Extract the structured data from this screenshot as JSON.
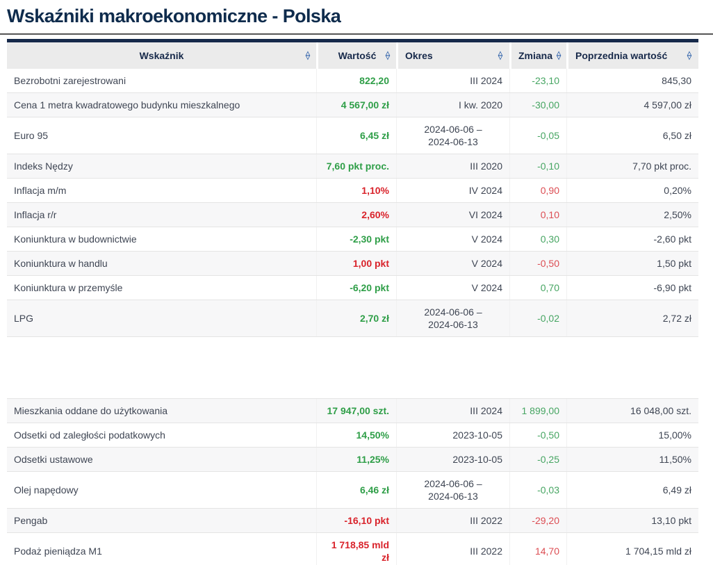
{
  "page": {
    "title": "Wskaźniki makroekonomiczne - Polska"
  },
  "icons": {
    "sort_up": "△",
    "sort_down": "▽"
  },
  "colors": {
    "title": "#0e2b4c",
    "divider": "#555555",
    "header_bg": "#ebebeb",
    "header_text": "#17294a",
    "header_border": "#16294a",
    "sort_icon": "#2c5fa9",
    "body_text": "#3e4553",
    "row_border": "#e4e4e4",
    "row_shade": "#f7f7f8",
    "positive_strong": "#2e9e47",
    "positive_soft": "#46a562",
    "negative_strong": "#d9232b",
    "negative_soft": "#dc4d53"
  },
  "table": {
    "columns": [
      {
        "label": "Wskaźnik"
      },
      {
        "label": "Wartość"
      },
      {
        "label": "Okres"
      },
      {
        "label": "Zmiana"
      },
      {
        "label": "Poprzednia wartość"
      }
    ],
    "sections": [
      {
        "rows": [
          {
            "name": "Bezrobotni zarejestrowani",
            "value": "822,20",
            "trend": "pos",
            "okres": "III 2024",
            "change": "-23,10",
            "change_trend": "pos",
            "previous": "845,30"
          },
          {
            "name": "Cena 1 metra kwadratowego budynku mieszkalnego",
            "value": "4 567,00 zł",
            "trend": "pos",
            "okres": "I kw. 2020",
            "change": "-30,00",
            "change_trend": "pos",
            "previous": "4 597,00 zł"
          },
          {
            "name": "Euro 95",
            "value": "6,45 zł",
            "trend": "pos",
            "okres": "2024-06-06 –\n2024-06-13",
            "change": "-0,05",
            "change_trend": "pos",
            "previous": "6,50 zł"
          },
          {
            "name": "Indeks Nędzy",
            "value": "7,60 pkt proc.",
            "trend": "pos",
            "okres": "III 2020",
            "change": "-0,10",
            "change_trend": "pos",
            "previous": "7,70 pkt proc."
          },
          {
            "name": "Inflacja m/m",
            "value": "1,10%",
            "trend": "neg",
            "okres": "IV 2024",
            "change": "0,90",
            "change_trend": "neg",
            "previous": "0,20%"
          },
          {
            "name": "Inflacja r/r",
            "value": "2,60%",
            "trend": "neg",
            "okres": "VI 2024",
            "change": "0,10",
            "change_trend": "neg",
            "previous": "2,50%"
          },
          {
            "name": "Koniunktura w budownictwie",
            "value": "-2,30 pkt",
            "trend": "pos",
            "okres": "V 2024",
            "change": "0,30",
            "change_trend": "pos",
            "previous": "-2,60 pkt"
          },
          {
            "name": "Koniunktura w handlu",
            "value": "1,00 pkt",
            "trend": "neg",
            "okres": "V 2024",
            "change": "-0,50",
            "change_trend": "neg",
            "previous": "1,50 pkt"
          },
          {
            "name": "Koniunktura w przemyśle",
            "value": "-6,20 pkt",
            "trend": "pos",
            "okres": "V 2024",
            "change": "0,70",
            "change_trend": "pos",
            "previous": "-6,90 pkt"
          },
          {
            "name": "LPG",
            "value": "2,70 zł",
            "trend": "pos",
            "okres": "2024-06-06 –\n2024-06-13",
            "change": "-0,02",
            "change_trend": "pos",
            "previous": "2,72 zł"
          }
        ]
      },
      {
        "rows": [
          {
            "name": "Mieszkania oddane do użytkowania",
            "value": "17 947,00 szt.",
            "trend": "pos",
            "okres": "III 2024",
            "change": "1 899,00",
            "change_trend": "pos",
            "previous": "16 048,00 szt."
          },
          {
            "name": "Odsetki od zaległości podatkowych",
            "value": "14,50%",
            "trend": "pos",
            "okres": "2023-10-05",
            "change": "-0,50",
            "change_trend": "pos",
            "previous": "15,00%"
          },
          {
            "name": "Odsetki ustawowe",
            "value": "11,25%",
            "trend": "pos",
            "okres": "2023-10-05",
            "change": "-0,25",
            "change_trend": "pos",
            "previous": "11,50%"
          },
          {
            "name": "Olej napędowy",
            "value": "6,46 zł",
            "trend": "pos",
            "okres": "2024-06-06 –\n2024-06-13",
            "change": "-0,03",
            "change_trend": "pos",
            "previous": "6,49 zł"
          },
          {
            "name": "Pengab",
            "value": "-16,10 pkt",
            "trend": "neg",
            "okres": "III 2022",
            "change": "-29,20",
            "change_trend": "neg",
            "previous": "13,10 pkt"
          },
          {
            "name": "Podaż pieniądza M1",
            "value": "1 718,85 mld zł",
            "trend": "neg",
            "okres": "III 2022",
            "change": "14,70",
            "change_trend": "neg",
            "previous": "1 704,15 mld zł"
          }
        ]
      }
    ]
  }
}
